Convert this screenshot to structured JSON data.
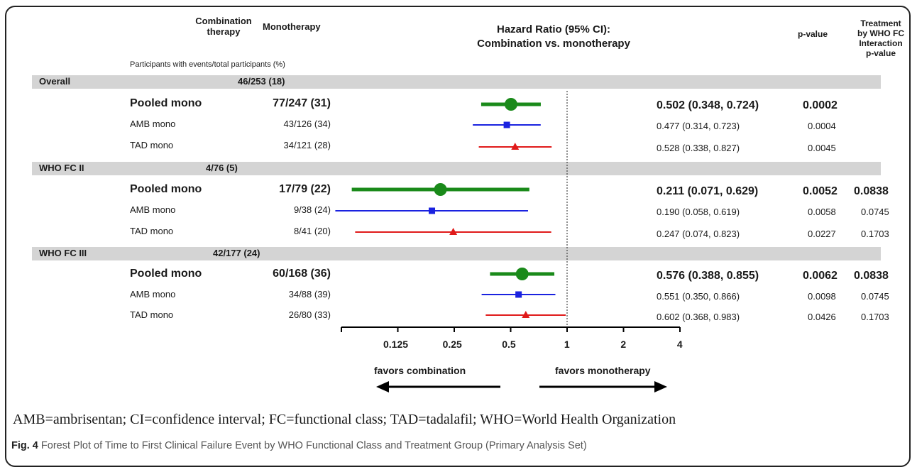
{
  "headers": {
    "combination": "Combination therapy",
    "monotherapy": "Monotherapy",
    "participants": "Participants with events/total participants (%)",
    "hr_title_1": "Hazard Ratio (95% CI):",
    "hr_title_2": "Combination vs. monotherapy",
    "pvalue": "p-value",
    "interaction_1": "Treatment",
    "interaction_2": "by WHO FC",
    "interaction_3": "Interaction",
    "interaction_4": "p-value"
  },
  "chart_data": {
    "type": "forest",
    "xscale": "log2",
    "xlim": [
      0.0625,
      4
    ],
    "reference_line": 1,
    "xticks": [
      "0.125",
      "0.25",
      "0.5",
      "1",
      "2",
      "4"
    ],
    "favors_left": "favors combination",
    "favors_right": "favors monotherapy",
    "colors": {
      "pooled": "#1a8a1a",
      "amb": "#1a22e0",
      "tad": "#e01a1a"
    },
    "groups": [
      {
        "name": "Overall",
        "combination": "46/253 (18)",
        "rows": [
          {
            "label": "Pooled mono",
            "kind": "pooled",
            "mono": "77/247 (31)",
            "hr": 0.502,
            "lo": 0.348,
            "hi": 0.724,
            "ci_text": "0.502 (0.348, 0.724)",
            "p": "0.0002",
            "interaction_p": ""
          },
          {
            "label": "AMB mono",
            "kind": "amb",
            "mono": "43/126 (34)",
            "hr": 0.477,
            "lo": 0.314,
            "hi": 0.723,
            "ci_text": "0.477 (0.314, 0.723)",
            "p": "0.0004",
            "interaction_p": ""
          },
          {
            "label": "TAD mono",
            "kind": "tad",
            "mono": "34/121 (28)",
            "hr": 0.528,
            "lo": 0.338,
            "hi": 0.827,
            "ci_text": "0.528 (0.338, 0.827)",
            "p": "0.0045",
            "interaction_p": ""
          }
        ]
      },
      {
        "name": "WHO FC II",
        "combination": "4/76 (5)",
        "rows": [
          {
            "label": "Pooled mono",
            "kind": "pooled",
            "mono": "17/79 (22)",
            "hr": 0.211,
            "lo": 0.071,
            "hi": 0.629,
            "ci_text": "0.211 (0.071, 0.629)",
            "p": "0.0052",
            "interaction_p": "0.0838"
          },
          {
            "label": "AMB mono",
            "kind": "amb",
            "mono": "9/38 (24)",
            "hr": 0.19,
            "lo": 0.058,
            "hi": 0.619,
            "ci_text": "0.190 (0.058, 0.619)",
            "p": "0.0058",
            "interaction_p": "0.0745"
          },
          {
            "label": "TAD mono",
            "kind": "tad",
            "mono": "8/41 (20)",
            "hr": 0.247,
            "lo": 0.074,
            "hi": 0.823,
            "ci_text": "0.247 (0.074, 0.823)",
            "p": "0.0227",
            "interaction_p": "0.1703"
          }
        ]
      },
      {
        "name": "WHO FC III",
        "combination": "42/177 (24)",
        "rows": [
          {
            "label": "Pooled mono",
            "kind": "pooled",
            "mono": "60/168 (36)",
            "hr": 0.576,
            "lo": 0.388,
            "hi": 0.855,
            "ci_text": "0.576 (0.388, 0.855)",
            "p": "0.0062",
            "interaction_p": "0.0838"
          },
          {
            "label": "AMB mono",
            "kind": "amb",
            "mono": "34/88 (39)",
            "hr": 0.551,
            "lo": 0.35,
            "hi": 0.866,
            "ci_text": "0.551 (0.350, 0.866)",
            "p": "0.0098",
            "interaction_p": "0.0745"
          },
          {
            "label": "TAD mono",
            "kind": "tad",
            "mono": "26/80 (33)",
            "hr": 0.602,
            "lo": 0.368,
            "hi": 0.983,
            "ci_text": "0.602 (0.368, 0.983)",
            "p": "0.0426",
            "interaction_p": "0.1703"
          }
        ]
      }
    ]
  },
  "footnote": "AMB=ambrisentan; CI=confidence interval; FC=functional class; TAD=tadalafil; WHO=World Health Organization",
  "caption": {
    "label": "Fig. 4",
    "text": "Forest Plot of Time to First Clinical Failure Event by WHO Functional Class and Treatment Group (Primary Analysis Set)"
  }
}
